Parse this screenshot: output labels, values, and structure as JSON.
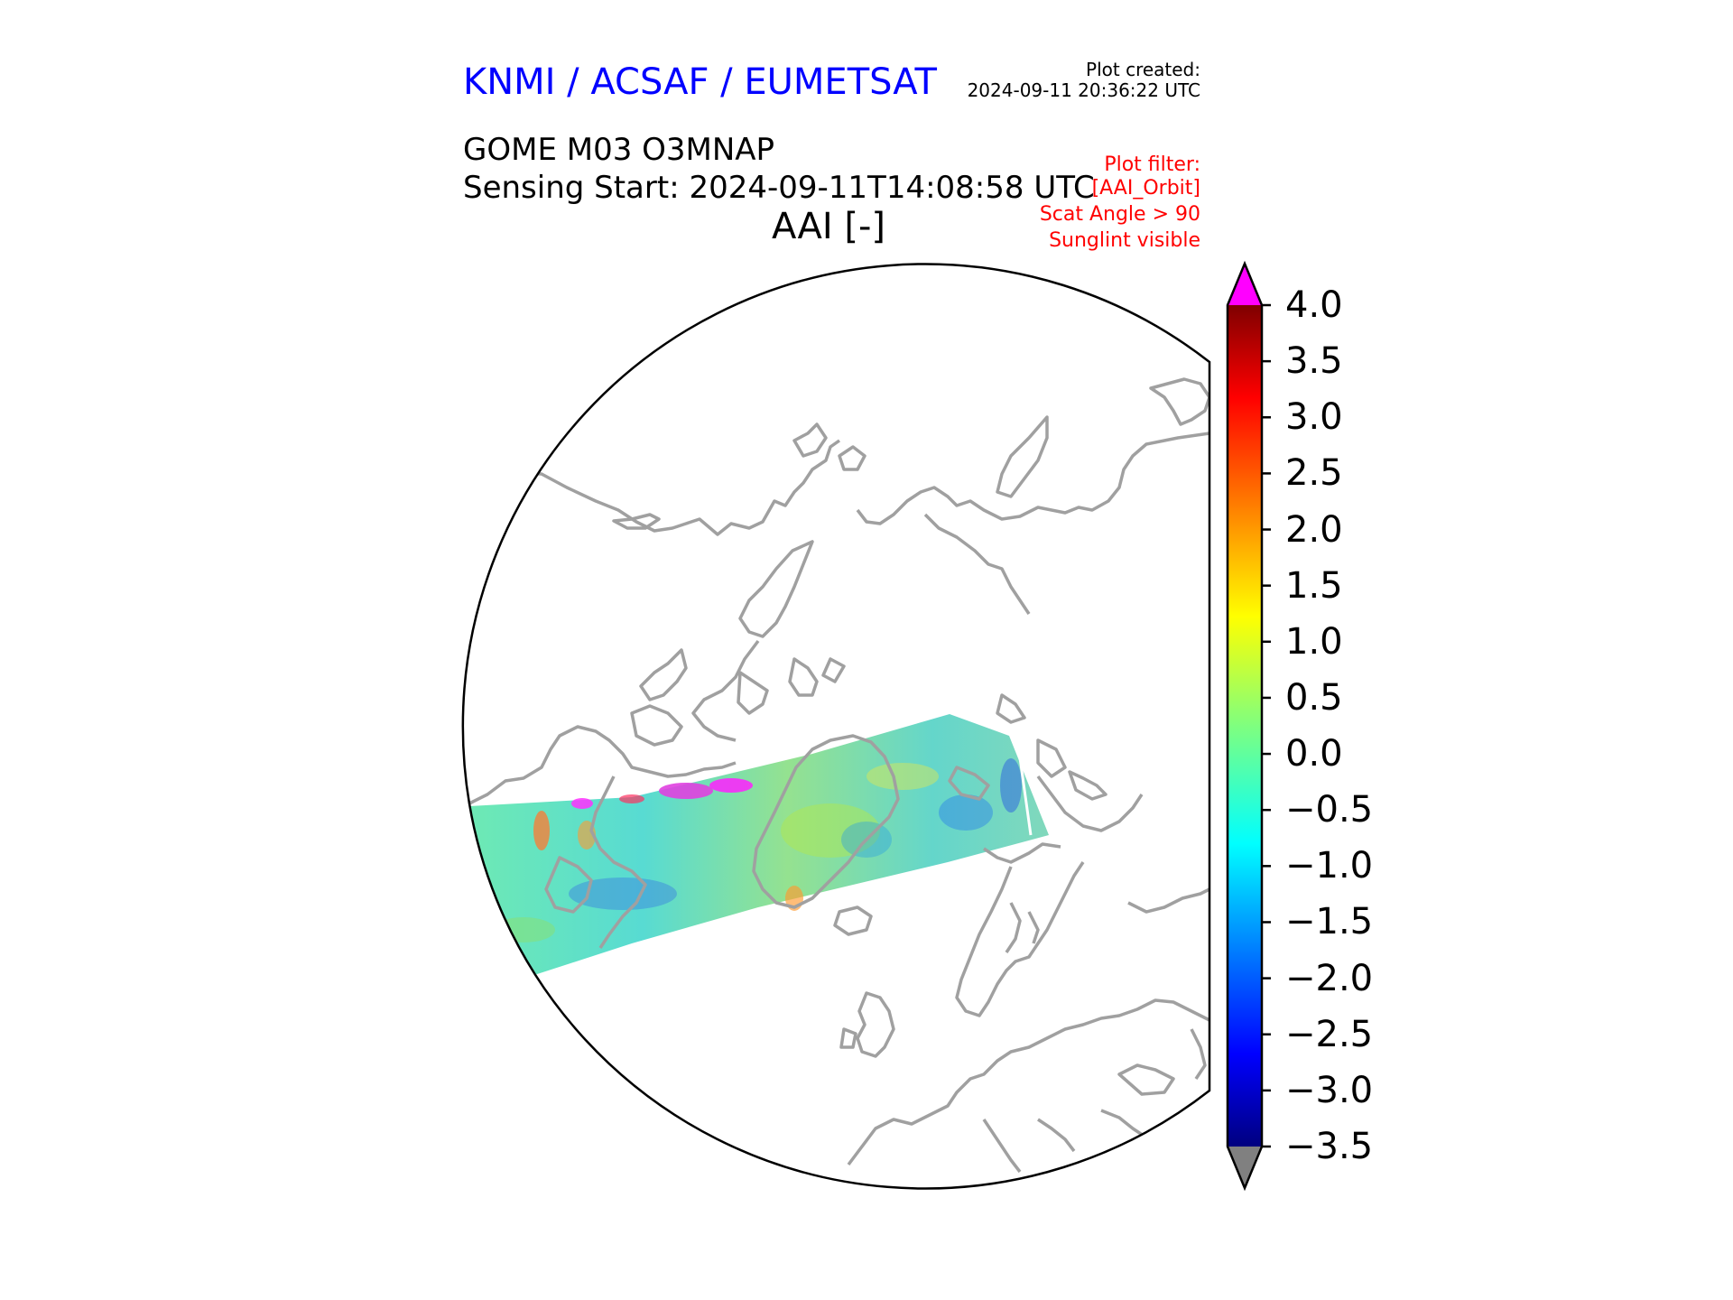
{
  "header": {
    "organization": "KNMI / ACSAF / EUMETSAT",
    "plot_created_label": "Plot created:",
    "plot_created_value": "2024-09-11 20:36:22 UTC",
    "product": "GOME M03 O3MNAP",
    "sensing_start": "Sensing Start: 2024-09-11T14:08:58 UTC",
    "plot_title": "AAI [-]",
    "filter_lines": [
      "Plot filter:",
      "[AAI_Orbit]",
      "Scat Angle > 90",
      "Sunglint visible"
    ]
  },
  "colorbar": {
    "variable": "AAI [-]",
    "min": -3.5,
    "max": 4.0,
    "ticks": [
      "4.0",
      "3.5",
      "3.0",
      "2.5",
      "2.0",
      "1.5",
      "1.0",
      "0.5",
      "0.0",
      "−0.5",
      "−1.0",
      "−1.5",
      "−2.0",
      "−2.5",
      "−3.0",
      "−3.5"
    ],
    "tick_values": [
      4.0,
      3.5,
      3.0,
      2.5,
      2.0,
      1.5,
      1.0,
      0.5,
      0.0,
      -0.5,
      -1.0,
      -1.5,
      -2.0,
      -2.5,
      -3.0,
      -3.5
    ],
    "colormap": "jet",
    "over_color": "#ff00ff",
    "under_color": "#808080"
  },
  "map": {
    "projection": "north-polar-stereographic",
    "coastline_color": "#a0a0a0",
    "background": "#ffffff"
  }
}
